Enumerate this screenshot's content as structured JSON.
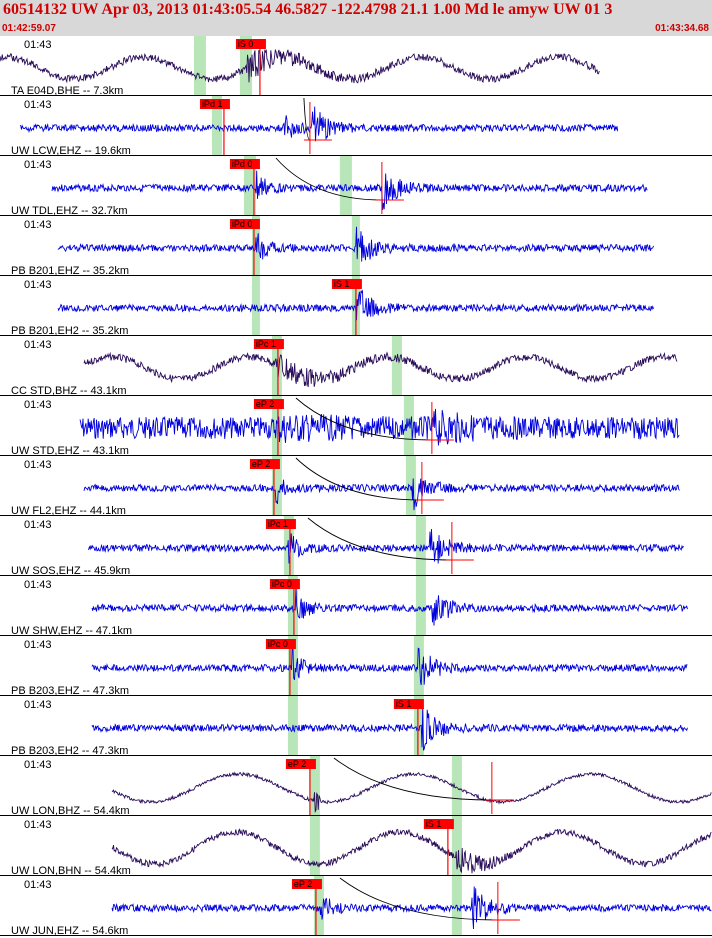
{
  "header": {
    "title": "60514132 UW Apr 03, 2013 01:43:05.54   46.5827 -122.4798 21.1 1.00 Md le amyw UW 01   3",
    "start_time": "01:42:59.07",
    "end_time": "01:43:34.68"
  },
  "chart_data": {
    "type": "line",
    "title": "60514132 UW Apr 03, 2013 01:43:05.54   46.5827 -122.4798 21.1 1.00 Md le amyw UW 01   3",
    "x_axis": {
      "start": "01:42:59.07",
      "end": "01:43:34.68",
      "unit": "time"
    },
    "grid": false,
    "colors": {
      "trace_blue": "#0000dd",
      "trace_purple": "#2a0d5a",
      "pick_red": "#ff0000",
      "window_green": "#b8e6b8",
      "divider": "#000000"
    },
    "traces": [
      {
        "label": "TA E04D,BHE -- 7.3km",
        "time_tick": "01:43",
        "color": "#2a0d5a",
        "kind": "low",
        "seed": 1,
        "data_start_s": 0.0,
        "data_end_s": 30.0,
        "p_onset_s": 12.3,
        "s_onset_s": 0,
        "picks": [
          {
            "label": "iS 0",
            "t_s": 11.8,
            "line": true
          }
        ],
        "green_windows_s": [
          [
            9.7,
            10.3
          ],
          [
            12.0,
            12.6
          ]
        ],
        "moveout": false,
        "cross_s": 0
      },
      {
        "label": "UW LCW,EHZ -- 19.6km",
        "time_tick": "01:43",
        "color": "#0000dd",
        "kind": "noise",
        "seed": 2,
        "data_start_s": 1.0,
        "data_end_s": 30.9,
        "p_onset_s": 14.2,
        "s_onset_s": 15.6,
        "picks": [
          {
            "label": "iPd 1",
            "t_s": 10.0,
            "line": true
          }
        ],
        "green_windows_s": [
          [
            10.6,
            11.1
          ]
        ],
        "moveout": true,
        "cross_s": 15.5
      },
      {
        "label": "UW TDL,EHZ -- 32.7km",
        "time_tick": "01:43",
        "color": "#0000dd",
        "kind": "noise",
        "seed": 3,
        "data_start_s": 2.6,
        "data_end_s": 32.4,
        "p_onset_s": 12.8,
        "s_onset_s": 19.1,
        "picks": [
          {
            "label": "iPd 0",
            "t_s": 11.5,
            "line": true
          }
        ],
        "green_windows_s": [
          [
            12.2,
            12.8
          ],
          [
            17.0,
            17.6
          ]
        ],
        "moveout": true,
        "cross_s": 19.1
      },
      {
        "label": "PB B201,EHZ -- 35.2km",
        "time_tick": "01:43",
        "color": "#0000dd",
        "kind": "noise",
        "seed": 4,
        "data_start_s": 2.9,
        "data_end_s": 32.7,
        "p_onset_s": 12.8,
        "s_onset_s": 17.8,
        "picks": [
          {
            "label": "iPd 0",
            "t_s": 11.5,
            "line": true
          }
        ],
        "green_windows_s": [
          [
            12.6,
            13.0
          ],
          [
            17.6,
            18.0
          ]
        ],
        "moveout": false,
        "cross_s": 0
      },
      {
        "label": "PB B201,EH2 -- 35.2km",
        "time_tick": "01:43",
        "color": "#0000dd",
        "kind": "noise",
        "seed": 5,
        "data_start_s": 2.9,
        "data_end_s": 32.7,
        "p_onset_s": 0,
        "s_onset_s": 17.8,
        "picks": [
          {
            "label": "iS 1",
            "t_s": 16.6,
            "line": true
          }
        ],
        "green_windows_s": [
          [
            12.6,
            13.0
          ],
          [
            17.6,
            18.0
          ]
        ],
        "moveout": false,
        "cross_s": 0
      },
      {
        "label": "CC STD,BHZ -- 43.1km",
        "time_tick": "01:43",
        "color": "#2a0d5a",
        "kind": "low",
        "seed": 6,
        "data_start_s": 4.2,
        "data_end_s": 33.9,
        "p_onset_s": 13.8,
        "s_onset_s": 19.8,
        "picks": [
          {
            "label": "iPc 1",
            "t_s": 12.7,
            "line": true
          }
        ],
        "green_windows_s": [
          [
            13.6,
            14.1
          ],
          [
            19.6,
            20.1
          ]
        ],
        "moveout": false,
        "cross_s": 0
      },
      {
        "label": "UW STD,EHZ -- 43.1km",
        "time_tick": "01:43",
        "color": "#0000dd",
        "kind": "heavy",
        "seed": 7,
        "data_start_s": 4.0,
        "data_end_s": 34.0,
        "p_onset_s": 13.8,
        "s_onset_s": 21.6,
        "picks": [
          {
            "label": "eP 2",
            "t_s": 12.7,
            "line": true
          }
        ],
        "green_windows_s": [
          [
            13.6,
            14.1
          ],
          [
            20.2,
            20.7
          ]
        ],
        "moveout": true,
        "cross_s": 21.6
      },
      {
        "label": "UW FL2,EHZ -- 44.1km",
        "time_tick": "01:43",
        "color": "#0000dd",
        "kind": "noise",
        "seed": 8,
        "data_start_s": 4.2,
        "data_end_s": 34.0,
        "p_onset_s": 13.8,
        "s_onset_s": 20.6,
        "picks": [
          {
            "label": "eP 2",
            "t_s": 12.5,
            "line": true
          }
        ],
        "green_windows_s": [
          [
            13.6,
            14.1
          ],
          [
            20.3,
            20.8
          ]
        ],
        "moveout": true,
        "cross_s": 21.1
      },
      {
        "label": "UW SOS,EHZ -- 45.9km",
        "time_tick": "01:43",
        "color": "#0000dd",
        "kind": "noise",
        "seed": 9,
        "data_start_s": 4.4,
        "data_end_s": 34.2,
        "p_onset_s": 14.4,
        "s_onset_s": 21.5,
        "picks": [
          {
            "label": "iPc 1",
            "t_s": 13.3,
            "line": true
          }
        ],
        "green_windows_s": [
          [
            14.2,
            14.7
          ],
          [
            20.8,
            21.3
          ]
        ],
        "moveout": true,
        "cross_s": 22.6
      },
      {
        "label": "UW SHW,EHZ -- 47.1km",
        "time_tick": "01:43",
        "color": "#0000dd",
        "kind": "noise",
        "seed": 10,
        "data_start_s": 4.6,
        "data_end_s": 34.4,
        "p_onset_s": 14.8,
        "s_onset_s": 21.6,
        "picks": [
          {
            "label": "iPc 0",
            "t_s": 13.5,
            "line": true
          }
        ],
        "green_windows_s": [
          [
            14.4,
            14.9
          ],
          [
            20.8,
            21.3
          ]
        ],
        "moveout": false,
        "cross_s": 0
      },
      {
        "label": "PB B203,EHZ -- 47.3km",
        "time_tick": "01:43",
        "color": "#0000dd",
        "kind": "noise",
        "seed": 11,
        "data_start_s": 4.6,
        "data_end_s": 34.4,
        "p_onset_s": 14.6,
        "s_onset_s": 20.9,
        "picks": [
          {
            "label": "iPc 0",
            "t_s": 13.3,
            "line": true
          }
        ],
        "green_windows_s": [
          [
            14.4,
            14.9
          ],
          [
            20.7,
            21.2
          ]
        ],
        "moveout": false,
        "cross_s": 0
      },
      {
        "label": "PB B203,EH2 -- 47.3km",
        "time_tick": "01:43",
        "color": "#0000dd",
        "kind": "noise",
        "seed": 12,
        "data_start_s": 4.6,
        "data_end_s": 34.4,
        "p_onset_s": 0,
        "s_onset_s": 21.1,
        "picks": [
          {
            "label": "iS 1",
            "t_s": 19.7,
            "line": true
          }
        ],
        "green_windows_s": [
          [
            14.4,
            14.9
          ],
          [
            20.7,
            21.2
          ]
        ],
        "moveout": false,
        "cross_s": 0
      },
      {
        "label": "UW LON,BHZ -- 54.4km",
        "time_tick": "01:43",
        "color": "#2a0d5a",
        "kind": "long",
        "seed": 13,
        "data_start_s": 5.6,
        "data_end_s": 35.6,
        "p_onset_s": 15.7,
        "s_onset_s": 0,
        "picks": [
          {
            "label": "eP 2",
            "t_s": 14.3,
            "line": true
          }
        ],
        "green_windows_s": [
          [
            15.5,
            16.0
          ],
          [
            22.6,
            23.1
          ]
        ],
        "moveout": true,
        "cross_s": 24.6
      },
      {
        "label": "UW LON,BHN -- 54.4km",
        "time_tick": "01:43",
        "color": "#2a0d5a",
        "kind": "long2",
        "seed": 14,
        "data_start_s": 5.6,
        "data_end_s": 35.6,
        "p_onset_s": 0,
        "s_onset_s": 22.8,
        "picks": [
          {
            "label": "iS 1",
            "t_s": 21.2,
            "line": true
          }
        ],
        "green_windows_s": [
          [
            15.5,
            16.0
          ],
          [
            22.6,
            23.1
          ]
        ],
        "moveout": false,
        "cross_s": 0
      },
      {
        "label": "UW JUN,EHZ -- 54.6km",
        "time_tick": "01:43",
        "color": "#0000dd",
        "kind": "noise",
        "seed": 15,
        "data_start_s": 5.6,
        "data_end_s": 35.6,
        "p_onset_s": 16.0,
        "s_onset_s": 23.6,
        "picks": [
          {
            "label": "eP 2",
            "t_s": 14.6,
            "line": true
          }
        ],
        "green_windows_s": [
          [
            15.7,
            16.2
          ],
          [
            22.6,
            23.1
          ]
        ],
        "moveout": true,
        "cross_s": 24.9
      }
    ]
  }
}
